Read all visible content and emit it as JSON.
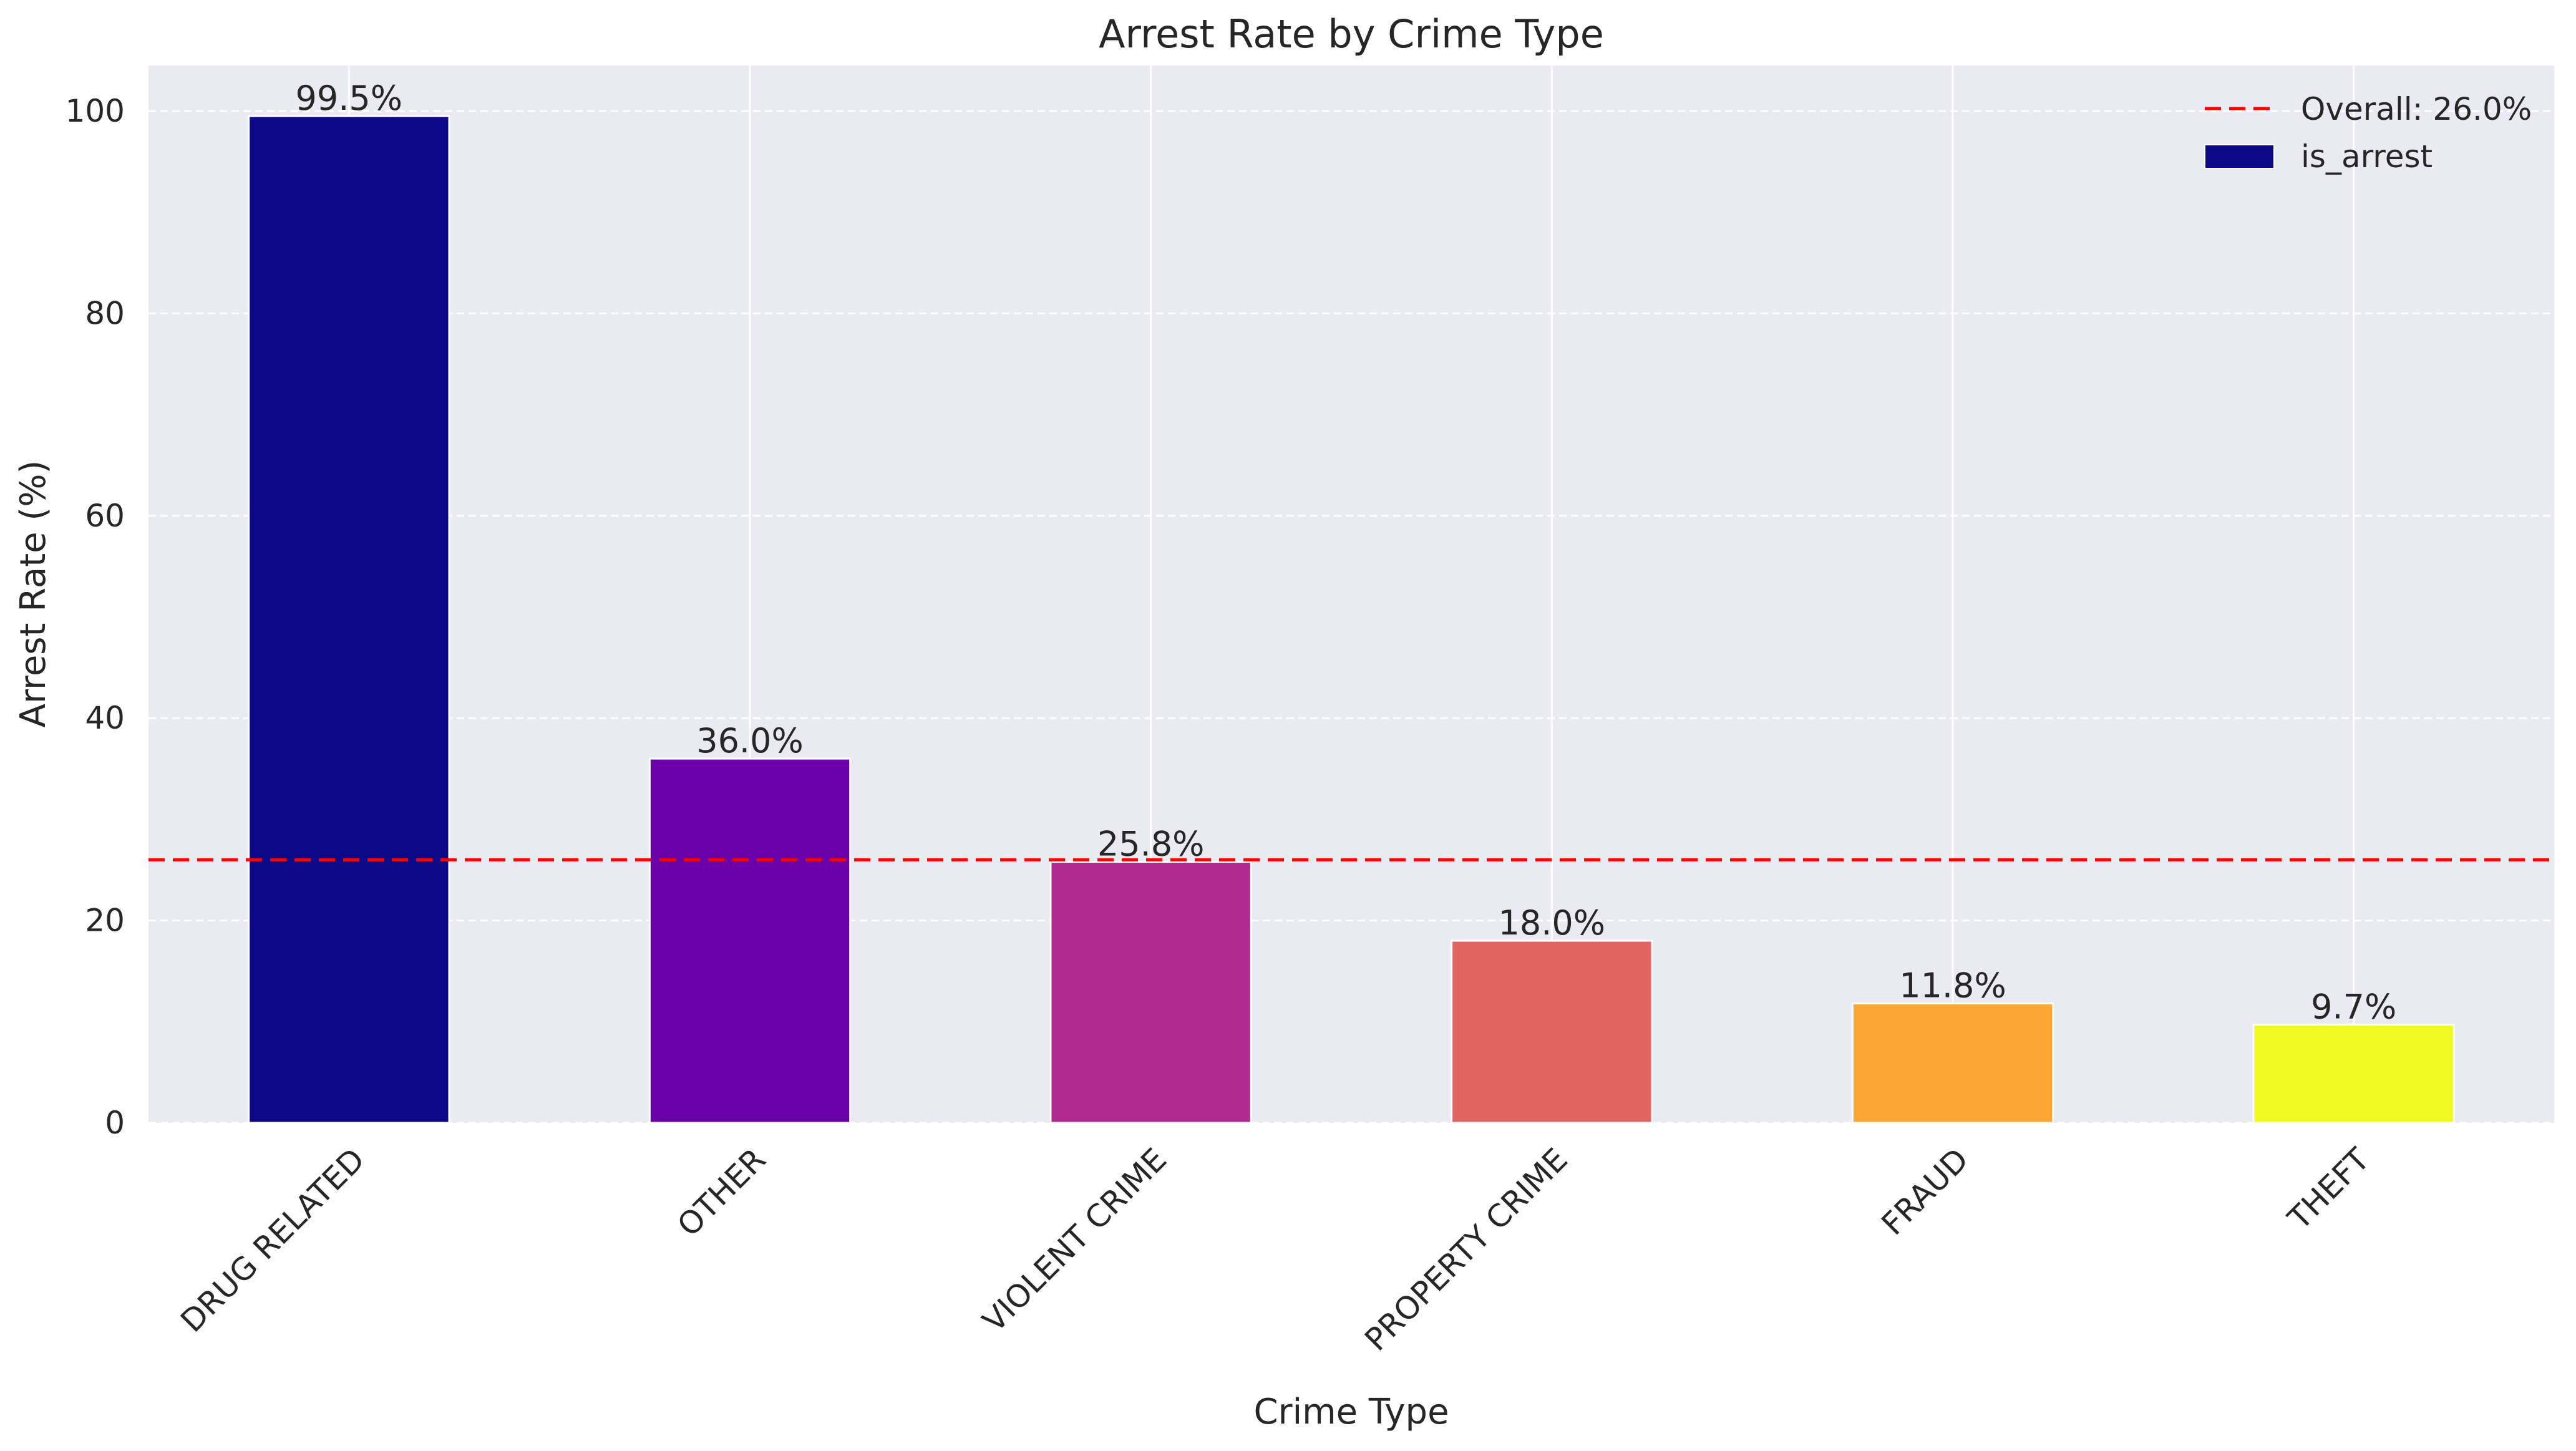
{
  "chart_data": {
    "type": "bar",
    "title": "Arrest Rate by Crime Type",
    "xlabel": "Crime Type",
    "ylabel": "Arrest Rate (%)",
    "categories": [
      "DRUG RELATED",
      "OTHER",
      "VIOLENT CRIME",
      "PROPERTY CRIME",
      "FRAUD",
      "THEFT"
    ],
    "series": [
      {
        "name": "is_arrest",
        "values": [
          99.5,
          36.0,
          25.8,
          18.0,
          11.8,
          9.7
        ]
      }
    ],
    "data_labels": [
      "99.5%",
      "36.0%",
      "25.8%",
      "18.0%",
      "11.8%",
      "9.7%"
    ],
    "bar_colors": [
      "#0d0887",
      "#6a00a8",
      "#b12a90",
      "#e16462",
      "#fca636",
      "#f0f921"
    ],
    "reference_line": {
      "value": 26.0,
      "label": "Overall: 26.0%",
      "color": "#ff0000",
      "style": "dashed"
    },
    "ylim": [
      0,
      104.5
    ],
    "yticks": [
      0,
      20,
      40,
      60,
      80,
      100
    ],
    "grid": true,
    "legend_position": "top-right",
    "colors": {
      "plot_background": "#eaeaf2",
      "grid": "#ffffff"
    }
  }
}
